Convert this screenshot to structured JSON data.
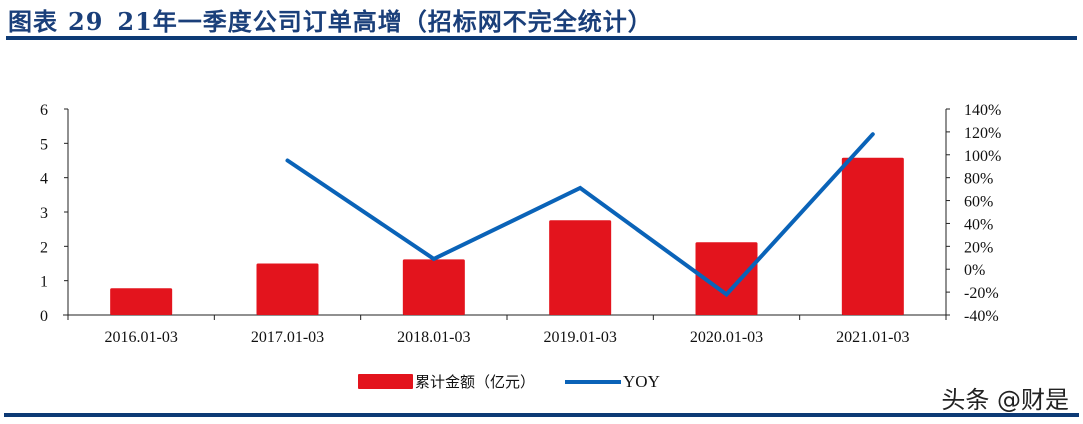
{
  "figure": {
    "label": "图表",
    "number": "29",
    "title": "21年一季度公司订单高增（招标网不完全统计）"
  },
  "watermark": "头条 @财是",
  "chart_data": {
    "type": "bar",
    "title": "21年一季度公司订单高增（招标网不完全统计）",
    "categories": [
      "2016.01-03",
      "2017.01-03",
      "2018.01-03",
      "2019.01-03",
      "2020.01-03",
      "2021.01-03"
    ],
    "series": [
      {
        "name": "累计金额（亿元）",
        "type": "bar",
        "axis": "left",
        "color": "#e3141d",
        "values": [
          0.78,
          1.5,
          1.62,
          2.76,
          2.12,
          4.58
        ]
      },
      {
        "name": "YOY",
        "type": "line",
        "axis": "right",
        "color": "#0a63b8",
        "values": [
          null,
          95,
          9,
          71,
          -22,
          118
        ]
      }
    ],
    "left_axis": {
      "ylim": [
        0,
        6
      ],
      "ticks": [
        "0",
        "1",
        "2",
        "3",
        "4",
        "5",
        "6"
      ]
    },
    "right_axis": {
      "ylim": [
        -40,
        140
      ],
      "ticks": [
        "-40%",
        "-20%",
        "0%",
        "20%",
        "40%",
        "60%",
        "80%",
        "100%",
        "120%",
        "140%"
      ]
    },
    "xlabel": "",
    "ylabel": "",
    "grid": false,
    "legend_position": "bottom"
  },
  "legend": {
    "bar_label": "累计金额（亿元）",
    "line_label": "YOY"
  }
}
